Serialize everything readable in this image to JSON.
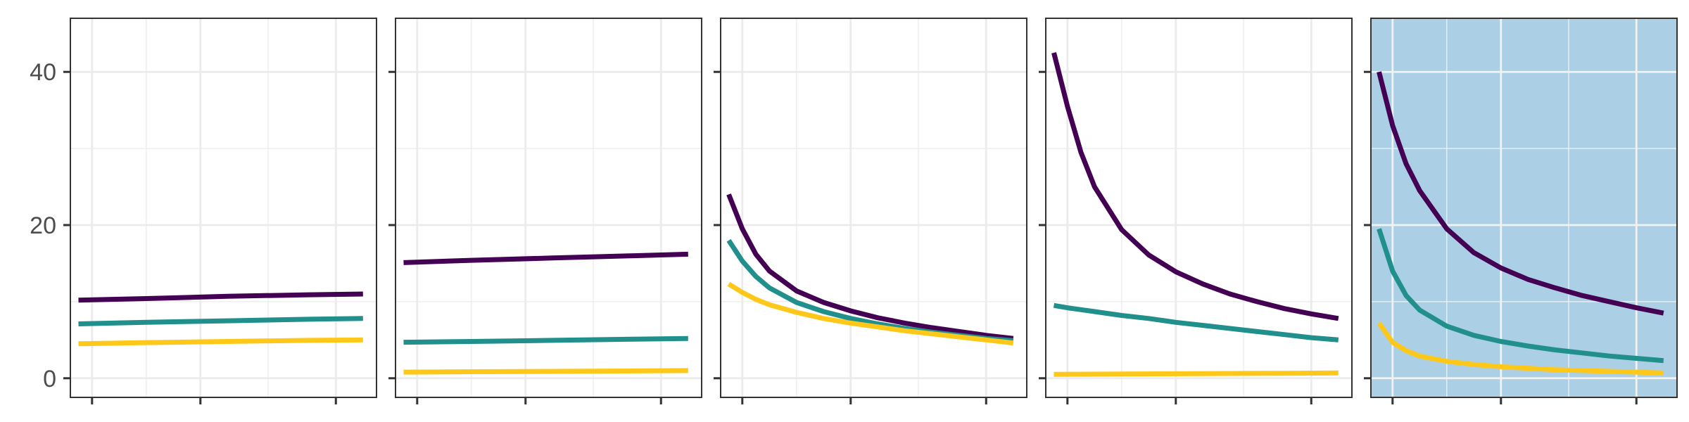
{
  "chart_data": {
    "type": "line",
    "facet_count": 5,
    "ylim": [
      -2.5,
      47
    ],
    "xlim": [
      0.2,
      11.5
    ],
    "yticks": [
      0,
      20,
      40
    ],
    "ytick_labels": [
      "0",
      "20",
      "40"
    ],
    "xticks": [
      1,
      5,
      10
    ],
    "x_minor_gridlines": [
      3,
      7.5
    ],
    "y_minor_gridlines": [
      10,
      30
    ],
    "xtick_labels_shown": false,
    "grid": true,
    "legend": "none",
    "series_colors": [
      "#440154",
      "#21908C",
      "#FDC81A"
    ],
    "panels": [
      {
        "background": "#ffffff",
        "grid_color": "#ebebeb",
        "series": [
          {
            "color": "#440154",
            "points": [
              [
                0.5,
                10.2
              ],
              [
                3,
                10.4
              ],
              [
                6,
                10.7
              ],
              [
                9,
                10.9
              ],
              [
                11,
                11.0
              ]
            ]
          },
          {
            "color": "#21908C",
            "points": [
              [
                0.5,
                7.1
              ],
              [
                3,
                7.3
              ],
              [
                6,
                7.5
              ],
              [
                9,
                7.7
              ],
              [
                11,
                7.8
              ]
            ]
          },
          {
            "color": "#FDC81A",
            "points": [
              [
                0.5,
                4.5
              ],
              [
                3,
                4.65
              ],
              [
                6,
                4.8
              ],
              [
                9,
                4.95
              ],
              [
                11,
                5.0
              ]
            ]
          }
        ]
      },
      {
        "background": "#ffffff",
        "grid_color": "#ebebeb",
        "series": [
          {
            "color": "#440154",
            "points": [
              [
                0.5,
                15.1
              ],
              [
                3,
                15.4
              ],
              [
                6,
                15.7
              ],
              [
                9,
                16.0
              ],
              [
                11,
                16.2
              ]
            ]
          },
          {
            "color": "#21908C",
            "points": [
              [
                0.5,
                4.7
              ],
              [
                3,
                4.8
              ],
              [
                6,
                4.95
              ],
              [
                9,
                5.1
              ],
              [
                11,
                5.2
              ]
            ]
          },
          {
            "color": "#FDC81A",
            "points": [
              [
                0.5,
                0.8
              ],
              [
                3,
                0.85
              ],
              [
                6,
                0.9
              ],
              [
                9,
                0.95
              ],
              [
                11,
                1.0
              ]
            ]
          }
        ]
      },
      {
        "background": "#ffffff",
        "grid_color": "#ebebeb",
        "series": [
          {
            "color": "#440154",
            "points": [
              [
                0.5,
                24.0
              ],
              [
                1,
                19.5
              ],
              [
                1.5,
                16.2
              ],
              [
                2,
                14.0
              ],
              [
                3,
                11.4
              ],
              [
                4,
                9.9
              ],
              [
                5,
                8.8
              ],
              [
                6,
                7.9
              ],
              [
                7,
                7.2
              ],
              [
                8,
                6.6
              ],
              [
                9,
                6.1
              ],
              [
                10,
                5.6
              ],
              [
                11,
                5.2
              ]
            ]
          },
          {
            "color": "#21908C",
            "points": [
              [
                0.5,
                18.0
              ],
              [
                1,
                15.3
              ],
              [
                1.5,
                13.3
              ],
              [
                2,
                11.8
              ],
              [
                3,
                9.9
              ],
              [
                4,
                8.7
              ],
              [
                5,
                7.8
              ],
              [
                6,
                7.1
              ],
              [
                7,
                6.5
              ],
              [
                8,
                6.0
              ],
              [
                9,
                5.6
              ],
              [
                10,
                5.2
              ],
              [
                11,
                4.9
              ]
            ]
          },
          {
            "color": "#FDC81A",
            "points": [
              [
                0.5,
                12.3
              ],
              [
                1,
                11.2
              ],
              [
                1.5,
                10.3
              ],
              [
                2,
                9.6
              ],
              [
                3,
                8.6
              ],
              [
                4,
                7.8
              ],
              [
                5,
                7.2
              ],
              [
                6,
                6.7
              ],
              [
                7,
                6.2
              ],
              [
                8,
                5.8
              ],
              [
                9,
                5.4
              ],
              [
                10,
                5.0
              ],
              [
                11,
                4.6
              ]
            ]
          }
        ]
      },
      {
        "background": "#ffffff",
        "grid_color": "#ebebeb",
        "series": [
          {
            "color": "#440154",
            "points": [
              [
                0.5,
                42.5
              ],
              [
                1,
                35.5
              ],
              [
                1.5,
                29.5
              ],
              [
                2,
                25.0
              ],
              [
                3,
                19.4
              ],
              [
                4,
                16.1
              ],
              [
                5,
                13.9
              ],
              [
                6,
                12.3
              ],
              [
                7,
                11.0
              ],
              [
                8,
                10.0
              ],
              [
                9,
                9.1
              ],
              [
                10,
                8.4
              ],
              [
                11,
                7.8
              ]
            ]
          },
          {
            "color": "#21908C",
            "points": [
              [
                0.5,
                9.5
              ],
              [
                1,
                9.2
              ],
              [
                2,
                8.7
              ],
              [
                3,
                8.2
              ],
              [
                4,
                7.8
              ],
              [
                5,
                7.3
              ],
              [
                6,
                6.9
              ],
              [
                7,
                6.5
              ],
              [
                8,
                6.1
              ],
              [
                9,
                5.7
              ],
              [
                10,
                5.3
              ],
              [
                11,
                5.0
              ]
            ]
          },
          {
            "color": "#FDC81A",
            "points": [
              [
                0.5,
                0.5
              ],
              [
                3,
                0.55
              ],
              [
                6,
                0.6
              ],
              [
                9,
                0.65
              ],
              [
                11,
                0.7
              ]
            ]
          }
        ]
      },
      {
        "background": "#abd0e6",
        "grid_color": "#f2f2f2",
        "series": [
          {
            "color": "#440154",
            "points": [
              [
                0.5,
                40.0
              ],
              [
                1,
                33.0
              ],
              [
                1.5,
                28.0
              ],
              [
                2,
                24.5
              ],
              [
                3,
                19.5
              ],
              [
                4,
                16.4
              ],
              [
                5,
                14.4
              ],
              [
                6,
                12.9
              ],
              [
                7,
                11.8
              ],
              [
                8,
                10.8
              ],
              [
                9,
                10.0
              ],
              [
                10,
                9.2
              ],
              [
                11,
                8.5
              ]
            ]
          },
          {
            "color": "#21908C",
            "points": [
              [
                0.5,
                19.5
              ],
              [
                1,
                14.0
              ],
              [
                1.5,
                10.8
              ],
              [
                2,
                8.9
              ],
              [
                3,
                6.8
              ],
              [
                4,
                5.6
              ],
              [
                5,
                4.8
              ],
              [
                6,
                4.2
              ],
              [
                7,
                3.7
              ],
              [
                8,
                3.3
              ],
              [
                9,
                2.9
              ],
              [
                10,
                2.6
              ],
              [
                11,
                2.3
              ]
            ]
          },
          {
            "color": "#FDC81A",
            "points": [
              [
                0.5,
                7.2
              ],
              [
                1,
                4.7
              ],
              [
                1.5,
                3.6
              ],
              [
                2,
                2.9
              ],
              [
                3,
                2.2
              ],
              [
                4,
                1.8
              ],
              [
                5,
                1.5
              ],
              [
                6,
                1.3
              ],
              [
                7,
                1.1
              ],
              [
                8,
                1.0
              ],
              [
                9,
                0.9
              ],
              [
                10,
                0.8
              ],
              [
                11,
                0.7
              ]
            ]
          }
        ]
      }
    ]
  }
}
